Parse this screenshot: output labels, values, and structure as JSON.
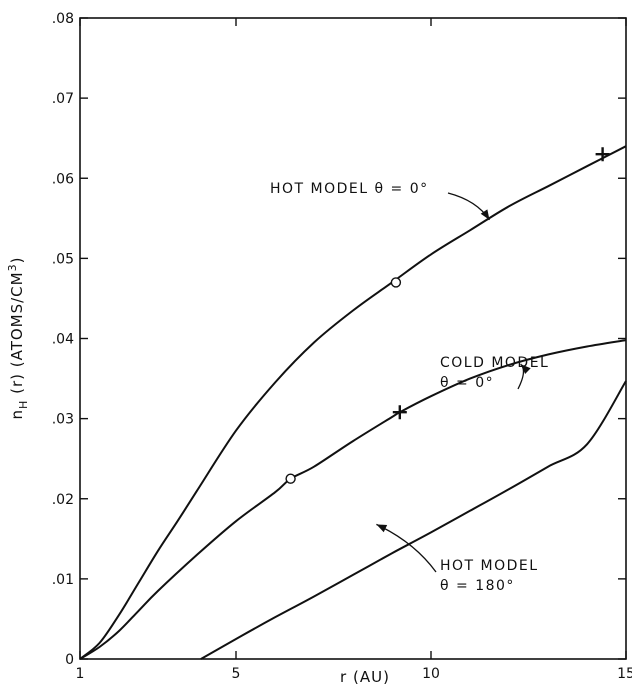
{
  "chart_data": {
    "type": "line",
    "xlabel": "r (AU)",
    "ylabel": "n_H (r) (ATOMS/CM^3)",
    "ylabel_parts": {
      "n": "n",
      "sub": "H",
      "mid": " (r) (ATOMS/CM",
      "sup": "3",
      "end": ")"
    },
    "xlim": [
      1,
      15
    ],
    "ylim": [
      0,
      0.08
    ],
    "x_ticks": [
      1,
      5,
      10,
      15
    ],
    "x_tick_labels": [
      "1",
      "5",
      "10",
      "15"
    ],
    "y_ticks": [
      0,
      0.01,
      0.02,
      0.03,
      0.04,
      0.05,
      0.06,
      0.07,
      0.08
    ],
    "y_tick_labels": [
      "0",
      ".01",
      ".02",
      ".03",
      ".04",
      ".05",
      ".06",
      ".07",
      ".08"
    ],
    "grid": false,
    "series": [
      {
        "key": "hot0",
        "x": [
          1,
          1.5,
          2,
          2.5,
          3,
          3.5,
          4,
          5,
          6,
          7,
          8,
          9,
          10,
          11,
          12,
          13,
          14,
          15
        ],
        "y": [
          0,
          0.002,
          0.0055,
          0.0095,
          0.0135,
          0.0172,
          0.021,
          0.0285,
          0.0345,
          0.0395,
          0.0435,
          0.047,
          0.0505,
          0.0535,
          0.0565,
          0.059,
          0.0615,
          0.064
        ]
      },
      {
        "key": "cold0",
        "x": [
          1,
          1.5,
          2,
          2.5,
          3,
          4,
          5,
          6,
          6.4,
          7,
          8,
          9,
          9.2,
          10,
          11,
          12,
          13,
          14,
          15
        ],
        "y": [
          0,
          0.0015,
          0.0035,
          0.006,
          0.0085,
          0.013,
          0.0172,
          0.0208,
          0.0225,
          0.024,
          0.0272,
          0.0302,
          0.0308,
          0.0328,
          0.035,
          0.0367,
          0.038,
          0.039,
          0.0398
        ]
      },
      {
        "key": "hot180",
        "x": [
          4.1,
          5,
          6,
          7,
          8,
          9,
          10,
          11,
          12,
          13,
          14,
          15
        ],
        "y": [
          0,
          0.0025,
          0.0052,
          0.0078,
          0.0105,
          0.0132,
          0.0158,
          0.0185,
          0.0212,
          0.024,
          0.0268,
          0.0347
        ]
      }
    ],
    "markers": [
      {
        "series": "hot0",
        "shape": "circle",
        "x": 9.1,
        "y": 0.047
      },
      {
        "series": "hot0",
        "shape": "plus",
        "x": 14.4,
        "y": 0.063
      },
      {
        "series": "cold0",
        "shape": "circle",
        "x": 6.4,
        "y": 0.0225
      },
      {
        "series": "cold0",
        "shape": "plus",
        "x": 9.2,
        "y": 0.0308
      }
    ],
    "annotations": [
      {
        "key": "hot0",
        "text": "HOT MODEL θ = 0°",
        "lines": [
          "HOT  MODEL  θ = 0°"
        ],
        "arrow_to": [
          11.5,
          0.0548
        ]
      },
      {
        "key": "cold0",
        "text": "COLD MODEL θ = 0°",
        "lines": [
          "COLD  MODEL",
          "θ = 0°"
        ],
        "arrow_to": [
          12.3,
          0.0368
        ]
      },
      {
        "key": "hot180",
        "text": "HOT MODEL θ = 180°",
        "lines": [
          "HOT  MODEL",
          "θ = 180°"
        ],
        "arrow_to": [
          8.6,
          0.0168
        ]
      }
    ]
  }
}
